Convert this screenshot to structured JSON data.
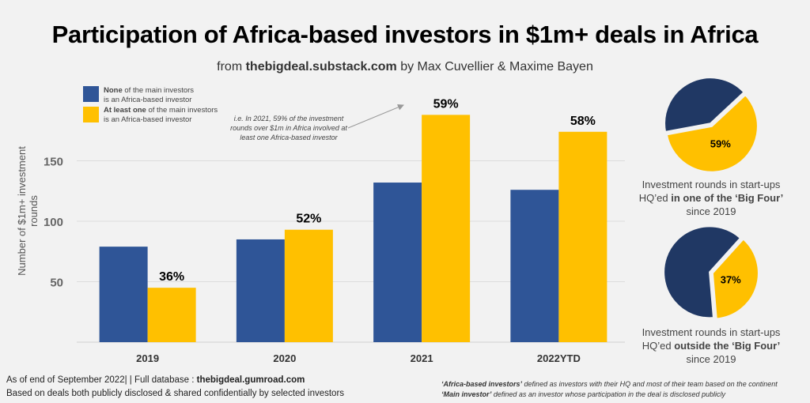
{
  "title": "Participation of Africa-based investors in $1m+ deals in Africa",
  "subtitle": {
    "prefix": "from ",
    "site": "thebigdeal.substack.com",
    "suffix": " by Max Cuvellier & Maxime Bayen"
  },
  "legend": [
    {
      "bold": "None",
      "rest": " of the main investors",
      "line2": "is an Africa-based investor",
      "color": "#2F5597"
    },
    {
      "bold": "At least one",
      "rest": " of the main investors",
      "line2": "is an Africa-based investor",
      "color": "#FFC000"
    }
  ],
  "annotation": "i.e. In 2021, 59% of the investment rounds over $1m in Africa involved at least one Africa-based investor",
  "chart_data": [
    {
      "type": "bar",
      "ylabel": "Number of $1m+ investment rounds",
      "categories": [
        "2019",
        "2020",
        "2021",
        "2022YTD"
      ],
      "yticks": [
        50,
        100,
        150
      ],
      "ylim": [
        0,
        190
      ],
      "grid": true,
      "legend_position": "top-left",
      "series": [
        {
          "name": "None of the main investors is an Africa-based investor",
          "color": "#2F5597",
          "values": [
            79,
            85,
            132,
            126
          ]
        },
        {
          "name": "At least one of the main investors is an Africa-based investor",
          "color": "#FFC000",
          "values": [
            45,
            93,
            188,
            174
          ]
        }
      ],
      "data_labels": [
        "36%",
        "52%",
        "59%",
        "58%"
      ]
    },
    {
      "type": "pie",
      "slices": [
        {
          "value": 59,
          "color": "#FFC000",
          "label": "59%"
        },
        {
          "value": 41,
          "color": "#203864"
        }
      ],
      "caption": {
        "line1": "Investment rounds in start-ups",
        "pre": "HQ’ed ",
        "bold": "in one of the ‘Big Four’",
        "line3": "since 2019"
      }
    },
    {
      "type": "pie",
      "slices": [
        {
          "value": 37,
          "color": "#FFC000",
          "label": "37%"
        },
        {
          "value": 63,
          "color": "#203864"
        }
      ],
      "caption": {
        "line1": "Investment rounds in start-ups",
        "pre": "HQ’ed ",
        "bold": "outside the ‘Big Four’",
        "line3": "since 2019"
      }
    }
  ],
  "footer": {
    "left1_pre": "As of end of September 2022| | Full database : ",
    "left1_bold": "thebigdeal.gumroad.com",
    "left2": "Based on deals both publicly disclosed & shared confidentially by selected investors",
    "right1_bold": "‘Africa-based investors’",
    "right1": " defined as investors with their HQ and most of their team based on the continent",
    "right2_bold": "‘Main investor’",
    "right2": " defined as an investor whose participation in the deal is disclosed publicly"
  }
}
